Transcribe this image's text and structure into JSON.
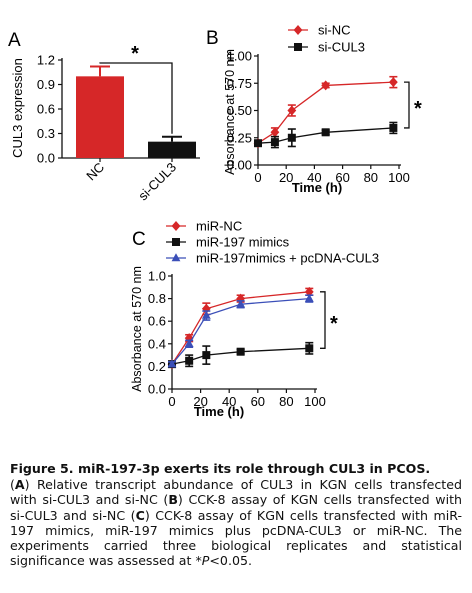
{
  "figure": {
    "colors": {
      "red": "#d62728",
      "black": "#111111",
      "blue": "#3b4fb8"
    },
    "caption": {
      "title": "Figure 5. miR-197-3p exerts its role through CUL3 in PCOS.",
      "letter_a": "A",
      "text_a": " Relative transcript abundance of CUL3 in KGN cells transfected with si-CUL3 and si-NC ",
      "letter_b": "B",
      "text_b": " CCK-8 assay of KGN cells transfected with si-CUL3 and si-NC ",
      "letter_c": "C",
      "text_c": " CCK-8 assay of KGN cells transfected with miR-197 mimics, miR-197 mimics plus pcDNA-CUL3 or miR-NC. The experiments carried three biological replicates and statistical significance was assessed at *",
      "p_symbol": "P",
      "p_threshold": "<0.05."
    }
  },
  "chart_data": [
    {
      "panel": "A",
      "type": "bar",
      "ylabel": "CUL3 expression",
      "categories": [
        "NC",
        "si-CUL3"
      ],
      "values": [
        1.0,
        0.2
      ],
      "errors": [
        0.12,
        0.06
      ],
      "bar_colors": [
        "#d62728",
        "#111111"
      ],
      "ylim": [
        0,
        1.2
      ],
      "yticks": [
        "0.0",
        "0.3",
        "0.6",
        "0.9",
        "1.2"
      ],
      "significance": "*"
    },
    {
      "panel": "B",
      "type": "line",
      "xlabel": "Time (h)",
      "ylabel": "Absorbance at 570 nm",
      "xlim": [
        0,
        100
      ],
      "ylim": [
        0,
        1.0
      ],
      "xticks": [
        "0",
        "20",
        "40",
        "60",
        "80",
        "100"
      ],
      "yticks": [
        "0.00",
        "0.25",
        "0.50",
        "0.75",
        "1.00"
      ],
      "legend_position": "top-left",
      "significance": "*",
      "series": [
        {
          "name": "si-NC",
          "marker": "diamond",
          "color": "#d62728",
          "x": [
            0,
            12,
            24,
            48,
            96
          ],
          "y": [
            0.2,
            0.3,
            0.5,
            0.73,
            0.76
          ],
          "err": [
            0.02,
            0.04,
            0.05,
            0.02,
            0.05
          ]
        },
        {
          "name": "si-CUL3",
          "marker": "square",
          "color": "#111111",
          "x": [
            0,
            12,
            24,
            48,
            96
          ],
          "y": [
            0.2,
            0.21,
            0.25,
            0.3,
            0.34
          ],
          "err": [
            0.02,
            0.05,
            0.08,
            0.02,
            0.05
          ]
        }
      ]
    },
    {
      "panel": "C",
      "type": "line",
      "xlabel": "Time (h)",
      "ylabel": "Absorbance at 570 nm",
      "xlim": [
        0,
        100
      ],
      "ylim": [
        0,
        1.0
      ],
      "xticks": [
        "0",
        "20",
        "40",
        "60",
        "80",
        "100"
      ],
      "yticks": [
        "0.0",
        "0.2",
        "0.4",
        "0.6",
        "0.8",
        "1.0"
      ],
      "legend_position": "top-left",
      "significance": "*",
      "series": [
        {
          "name": "miR-NC",
          "marker": "diamond",
          "color": "#d62728",
          "x": [
            0,
            12,
            24,
            48,
            96
          ],
          "y": [
            0.22,
            0.45,
            0.71,
            0.8,
            0.86
          ],
          "err": [
            0.02,
            0.03,
            0.05,
            0.03,
            0.03
          ]
        },
        {
          "name": "miR-197 mimics",
          "marker": "square",
          "color": "#111111",
          "x": [
            0,
            12,
            24,
            48,
            96
          ],
          "y": [
            0.22,
            0.25,
            0.3,
            0.33,
            0.36
          ],
          "err": [
            0.02,
            0.05,
            0.08,
            0.02,
            0.05
          ]
        },
        {
          "name": "miR-197mimics + pcDNA-CUL3",
          "marker": "triangle",
          "color": "#3b4fb8",
          "x": [
            0,
            12,
            24,
            48,
            96
          ],
          "y": [
            0.22,
            0.4,
            0.65,
            0.75,
            0.8
          ],
          "err": [
            0.02,
            0.03,
            0.04,
            0.03,
            0.03
          ]
        }
      ]
    }
  ]
}
